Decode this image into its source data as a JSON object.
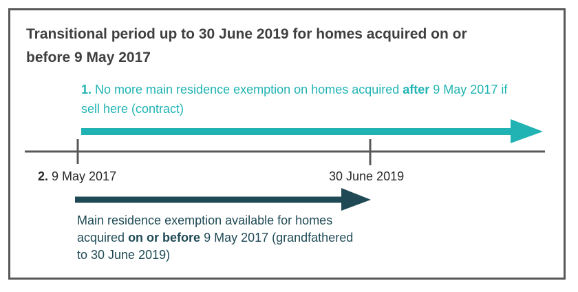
{
  "title": "Transitional period up to 30 June 2019 for homes acquired on or before 9 May 2017",
  "teal_note": {
    "number": "1.",
    "text_before": " No more main residence exemption on homes acquired ",
    "emphasis": "after",
    "text_after": " 9 May 2017 if sell here (contract)"
  },
  "timeline": {
    "start_number": "2.",
    "start_label": " 9 May 2017",
    "end_label": "30 June 2019"
  },
  "dark_note": {
    "text_before": "Main residence exemption available for homes acquired ",
    "emphasis": "on or before",
    "text_after": " 9 May 2017 (grandfathered to 30 June 2019)"
  },
  "colors": {
    "teal": "#21b3b3",
    "dark_teal": "#1f4a55",
    "axis": "#585858",
    "frame": "#585858"
  }
}
